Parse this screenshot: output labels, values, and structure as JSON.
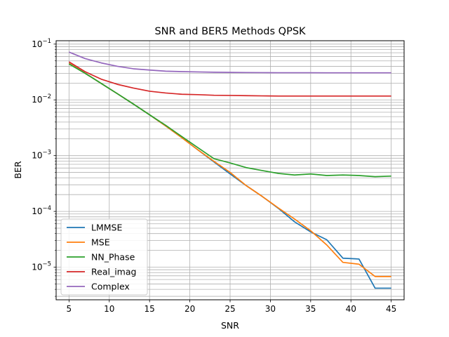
{
  "chart_data": {
    "type": "line",
    "title": "SNR and BER5 Methods QPSK",
    "xlabel": "SNR",
    "ylabel": "BER",
    "xlim": [
      3.4,
      46.6
    ],
    "ylim": [
      2.6e-06,
      0.115
    ],
    "yscale": "log",
    "grid": true,
    "grid_minor_y": true,
    "legend_position": "lower-left",
    "x_ticks": [
      5,
      10,
      15,
      20,
      25,
      30,
      35,
      40,
      45
    ],
    "x_tick_labels": [
      "5",
      "10",
      "15",
      "20",
      "25",
      "30",
      "35",
      "40",
      "45"
    ],
    "y_ticks": [
      {
        "value": 1e-05,
        "base": "10",
        "exp": "−5"
      },
      {
        "value": 0.0001,
        "base": "10",
        "exp": "−4"
      },
      {
        "value": 0.001,
        "base": "10",
        "exp": "−3"
      },
      {
        "value": 0.01,
        "base": "10",
        "exp": "−2"
      },
      {
        "value": 0.1,
        "base": "10",
        "exp": "−1"
      }
    ],
    "x": [
      5,
      7,
      9,
      11,
      13,
      15,
      17,
      19,
      21,
      23,
      25,
      27,
      29,
      31,
      33,
      35,
      37,
      39,
      41,
      43,
      45
    ],
    "series": [
      {
        "name": "LMMSE",
        "color": "#1f77b4",
        "values": [
          0.045,
          0.03,
          0.0197,
          0.0129,
          0.0084,
          0.0054,
          0.0034,
          0.0021,
          0.00127,
          0.00077,
          0.00047,
          0.00029,
          0.000185,
          0.000113,
          6.5e-05,
          4.3e-05,
          3.1e-05,
          1.45e-05,
          1.4e-05,
          4.2e-06,
          4.2e-06
        ]
      },
      {
        "name": "MSE",
        "color": "#ff7f0e",
        "values": [
          0.045,
          0.03,
          0.0197,
          0.0129,
          0.0084,
          0.0054,
          0.0034,
          0.0021,
          0.00127,
          0.00079,
          0.0005,
          0.00029,
          0.000185,
          0.000115,
          7.3e-05,
          4.5e-05,
          2.5e-05,
          1.22e-05,
          1.13e-05,
          6.8e-06,
          6.8e-06
        ]
      },
      {
        "name": "NN_Phase",
        "color": "#2ca02c",
        "values": [
          0.044,
          0.03,
          0.0197,
          0.0129,
          0.0084,
          0.0054,
          0.0035,
          0.0022,
          0.00139,
          0.00088,
          0.00074,
          0.00061,
          0.00054,
          0.00048,
          0.00045,
          0.00047,
          0.00044,
          0.00045,
          0.00044,
          0.00042,
          0.00043
        ]
      },
      {
        "name": "Real_imag",
        "color": "#d62728",
        "values": [
          0.048,
          0.032,
          0.0235,
          0.019,
          0.0163,
          0.0143,
          0.0133,
          0.0126,
          0.0124,
          0.0121,
          0.012,
          0.0119,
          0.0118,
          0.0117,
          0.0117,
          0.0117,
          0.0117,
          0.0117,
          0.0117,
          0.0117,
          0.0117
        ]
      },
      {
        "name": "Complex",
        "color": "#9467bd",
        "values": [
          0.072,
          0.055,
          0.046,
          0.04,
          0.0361,
          0.0343,
          0.0327,
          0.0321,
          0.0317,
          0.0313,
          0.0311,
          0.0309,
          0.0308,
          0.0307,
          0.0307,
          0.0307,
          0.0306,
          0.0306,
          0.0306,
          0.0306,
          0.0306
        ]
      }
    ]
  }
}
